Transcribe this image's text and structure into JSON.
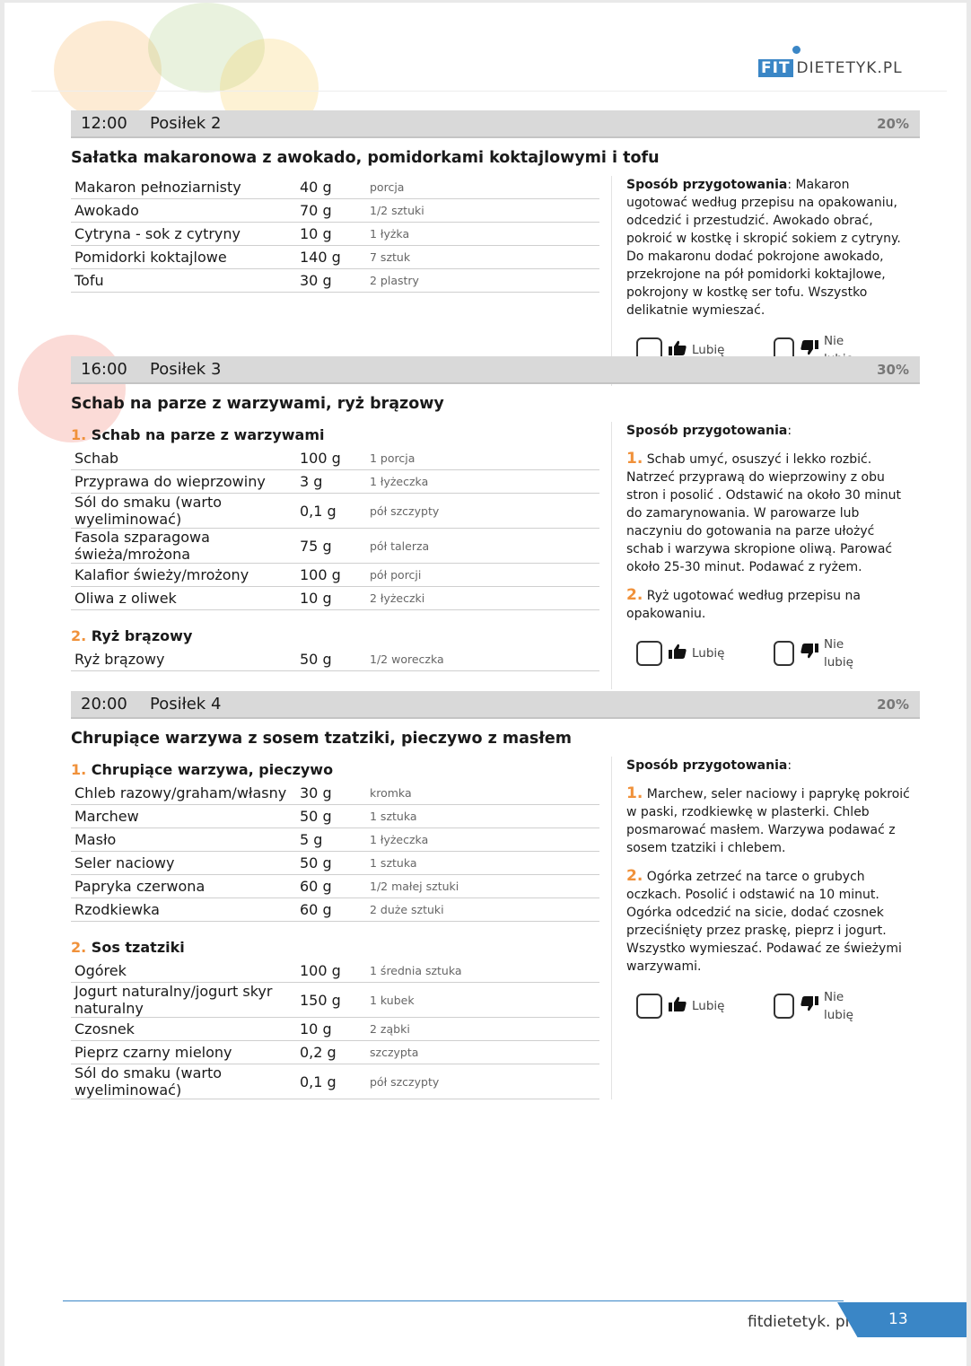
{
  "logo": {
    "text": "FITDIETETYK.PL",
    "fit": "FIT",
    "rest": "DIETETYK.PL"
  },
  "labels": {
    "like": "Lubię",
    "dislike": "Nie lubię"
  },
  "meals": [
    {
      "time": "12:00",
      "name": "Posiłek 2",
      "percent": "20%",
      "title": "Sałatka makaronowa z awokado, pomidorkami koktajlowymi i tofu",
      "groups": [
        {
          "number": "",
          "name": "",
          "items": [
            {
              "name": "Makaron pełnoziarnisty",
              "amount": "40 g",
              "measure": "porcja"
            },
            {
              "name": "Awokado",
              "amount": "70 g",
              "measure": "1/2 sztuki"
            },
            {
              "name": "Cytryna - sok z cytryny",
              "amount": "10 g",
              "measure": "1 łyżka"
            },
            {
              "name": "Pomidorki koktajlowe",
              "amount": "140 g",
              "measure": "7 sztuk"
            },
            {
              "name": "Tofu",
              "amount": "30 g",
              "measure": "2 plastry"
            }
          ]
        }
      ],
      "prep_label": "Sposób przygotowania",
      "prep_inline": ": Makaron ugotować według przepisu na opakowaniu, odcedzić i przestudzić. Awokado obrać, pokroić w kostkę i skropić sokiem z cytryny. Do makaronu dodać pokrojone awokado, przekrojone na pół pomidorki koktajlowe, pokrojony w kostkę ser tofu. Wszystko delikatnie wymieszać.",
      "steps": []
    },
    {
      "time": "16:00",
      "name": "Posiłek 3",
      "percent": "30%",
      "title": "Schab na parze z warzywami, ryż brązowy",
      "groups": [
        {
          "number": "1.",
          "name": "Schab na parze z warzywami",
          "items": [
            {
              "name": "Schab",
              "amount": "100 g",
              "measure": "1 porcja"
            },
            {
              "name": "Przyprawa do wieprzowiny",
              "amount": "3 g",
              "measure": "1 łyżeczka"
            },
            {
              "name": "Sól do smaku (warto wyeliminować)",
              "amount": "0,1 g",
              "measure": "pół szczypty"
            },
            {
              "name": "Fasola szparagowa świeża/mrożona",
              "amount": "75 g",
              "measure": "pół talerza"
            },
            {
              "name": "Kalafior świeży/mrożony",
              "amount": "100 g",
              "measure": "pół porcji"
            },
            {
              "name": "Oliwa z oliwek",
              "amount": "10 g",
              "measure": "2 łyżeczki"
            }
          ]
        },
        {
          "number": "2.",
          "name": "Ryż brązowy",
          "items": [
            {
              "name": "Ryż brązowy",
              "amount": "50 g",
              "measure": "1/2 woreczka"
            }
          ]
        }
      ],
      "prep_label": "Sposób przygotowania",
      "prep_inline": ":",
      "steps": [
        {
          "number": "1.",
          "text": "Schab umyć, osuszyć i lekko rozbić. Natrzeć przyprawą do wieprzowiny z obu stron i posolić . Odstawić na około 30 minut do zamarynowania. W parowarze lub naczyniu do gotowania na parze ułożyć schab i warzywa skropione oliwą. Parować około 25-30 minut. Podawać z ryżem."
        },
        {
          "number": "2.",
          "text": "Ryż ugotować według przepisu na opakowaniu."
        }
      ]
    },
    {
      "time": "20:00",
      "name": "Posiłek 4",
      "percent": "20%",
      "title": "Chrupiące warzywa z sosem tzatziki, pieczywo z masłem",
      "groups": [
        {
          "number": "1.",
          "name": "Chrupiące warzywa, pieczywo",
          "items": [
            {
              "name": "Chleb razowy/graham/własny",
              "amount": "30 g",
              "measure": "kromka"
            },
            {
              "name": "Marchew",
              "amount": "50 g",
              "measure": "1 sztuka"
            },
            {
              "name": "Masło",
              "amount": "5 g",
              "measure": "1 łyżeczka"
            },
            {
              "name": "Seler naciowy",
              "amount": "50 g",
              "measure": "1 sztuka"
            },
            {
              "name": "Papryka czerwona",
              "amount": "60 g",
              "measure": "1/2 małej sztuki"
            },
            {
              "name": "Rzodkiewka",
              "amount": "60 g",
              "measure": "2 duże sztuki"
            }
          ]
        },
        {
          "number": "2.",
          "name": "Sos tzatziki",
          "items": [
            {
              "name": "Ogórek",
              "amount": "100 g",
              "measure": "1 średnia sztuka"
            },
            {
              "name": "Jogurt naturalny/jogurt skyr naturalny",
              "amount": "150 g",
              "measure": "1 kubek"
            },
            {
              "name": "Czosnek",
              "amount": "10 g",
              "measure": "2 ząbki"
            },
            {
              "name": "Pieprz czarny mielony",
              "amount": "0,2 g",
              "measure": "szczypta"
            },
            {
              "name": "Sól do smaku (warto wyeliminować)",
              "amount": "0,1 g",
              "measure": "pół szczypty"
            }
          ]
        }
      ],
      "prep_label": "Sposób przygotowania",
      "prep_inline": ":",
      "steps": [
        {
          "number": "1.",
          "text": "Marchew, seler naciowy i paprykę pokroić w paski, rzodkiewkę w plasterki. Chleb posmarować masłem. Warzywa podawać z sosem tzatziki i chlebem."
        },
        {
          "number": "2.",
          "text": "Ogórka zetrzeć na tarce o grubych oczkach. Posolić i odstawić na 10 minut. Ogórka odcedzić na sicie, dodać czosnek przeciśnięty przez praskę, pieprz i jogurt. Wszystko wymieszać. Podawać ze świeżymi warzywami."
        }
      ]
    }
  ],
  "footer": {
    "site": "fitdietetyk. pl",
    "page": "13"
  },
  "colors": {
    "accent": "#3a86c6",
    "number": "#f0913a",
    "bar": "#d9d9d9"
  }
}
